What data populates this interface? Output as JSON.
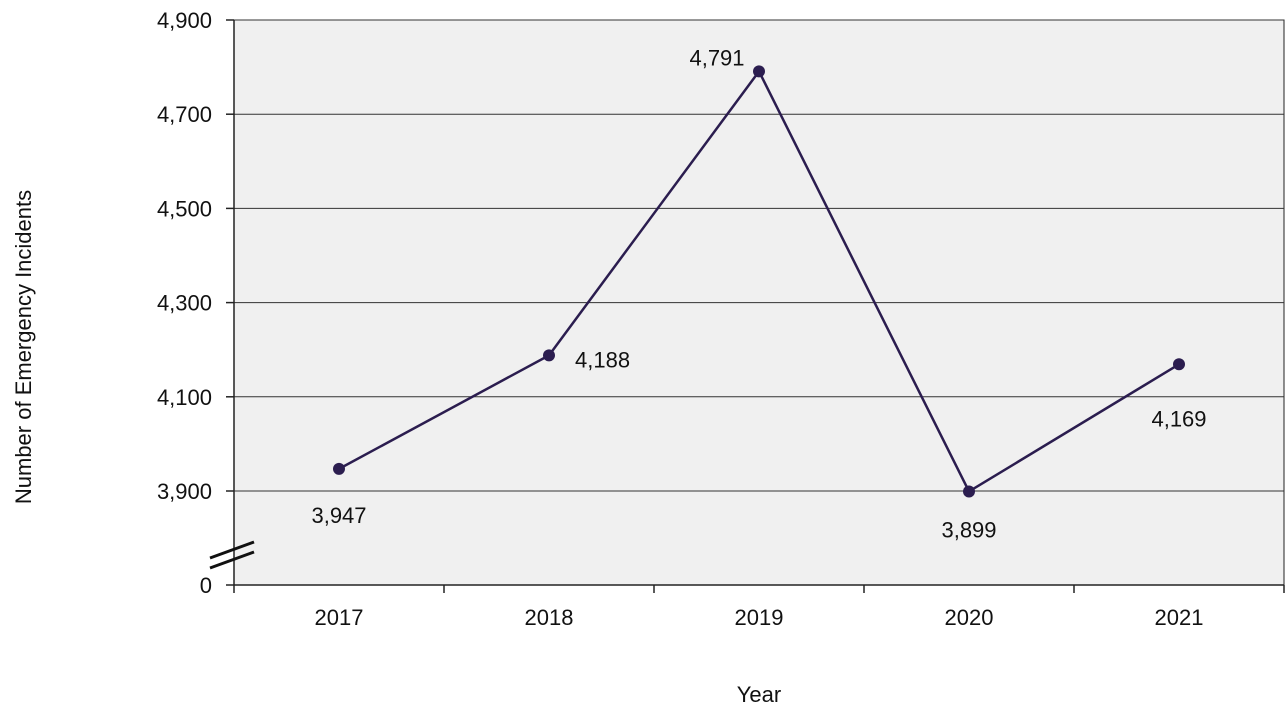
{
  "chart_data": {
    "type": "line",
    "title": "",
    "xlabel": "Year",
    "ylabel": "Number of Emergency Incidents",
    "x": [
      "2017",
      "2018",
      "2019",
      "2020",
      "2021"
    ],
    "values": [
      3947,
      4188,
      4791,
      3899,
      4169
    ],
    "data_labels": [
      "3,947",
      "4,188",
      "4,791",
      "3,899",
      "4,169"
    ],
    "yticks": [
      0,
      3900,
      4100,
      4300,
      4500,
      4700,
      4900
    ],
    "ytick_labels": [
      "0",
      "3,900",
      "4,100",
      "4,300",
      "4,500",
      "4,700",
      "4,900"
    ],
    "ylim": [
      3700,
      4900
    ],
    "axis_break": true,
    "grid": true,
    "legend": "none",
    "colors": {
      "line": "#2b1d4f",
      "marker": "#2b1d4f",
      "plot_background": "#f0f0f0",
      "grid": "#333333",
      "axis": "#222222"
    }
  }
}
